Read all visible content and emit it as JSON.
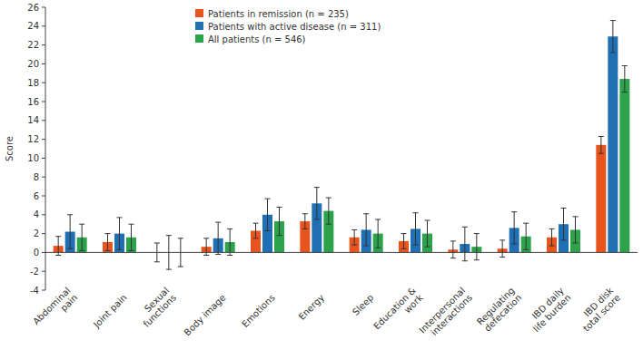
{
  "chart_data": {
    "type": "bar",
    "y_label": "Score",
    "categories": [
      "Abdominal pain",
      "Joint pain",
      "Sexual functions",
      "Body image",
      "Emotions",
      "Energy",
      "Sleep",
      "Education & work",
      "Interpersonal interactions",
      "Regulating defecation",
      "IBD daily life burden",
      "IBD disk total score"
    ],
    "series": [
      {
        "name": "Patients in remission (n = 235)",
        "color": "#e8541e",
        "values": [
          0.7,
          1.1,
          0,
          0.6,
          2.3,
          3.3,
          1.6,
          1.2,
          0.3,
          0.4,
          1.6,
          11.4
        ],
        "errors": [
          1.0,
          0.9,
          1.0,
          0.9,
          0.8,
          0.8,
          0.8,
          0.8,
          0.9,
          0.9,
          0.9,
          0.9
        ]
      },
      {
        "name": "Patients with active disease (n = 311)",
        "color": "#1f6fb5",
        "values": [
          2.2,
          2.0,
          0,
          1.5,
          4.0,
          5.2,
          2.4,
          2.5,
          0.9,
          2.6,
          3.0,
          22.9
        ],
        "errors": [
          1.8,
          1.7,
          1.8,
          1.7,
          1.7,
          1.7,
          1.7,
          1.7,
          1.8,
          1.7,
          1.7,
          1.7
        ]
      },
      {
        "name": "All patients (n = 546)",
        "color": "#2ca24a",
        "values": [
          1.6,
          1.6,
          0,
          1.1,
          3.3,
          4.4,
          2.0,
          2.0,
          0.6,
          1.7,
          2.4,
          18.4
        ],
        "errors": [
          1.4,
          1.4,
          1.5,
          1.4,
          1.5,
          1.4,
          1.5,
          1.4,
          1.4,
          1.4,
          1.4,
          1.4
        ]
      }
    ],
    "ylim": [
      -4,
      26
    ],
    "yticks": [
      -4,
      -2,
      0,
      2,
      4,
      6,
      8,
      10,
      12,
      14,
      16,
      18,
      20,
      22,
      24,
      26
    ],
    "grid": false,
    "legend": "top"
  }
}
